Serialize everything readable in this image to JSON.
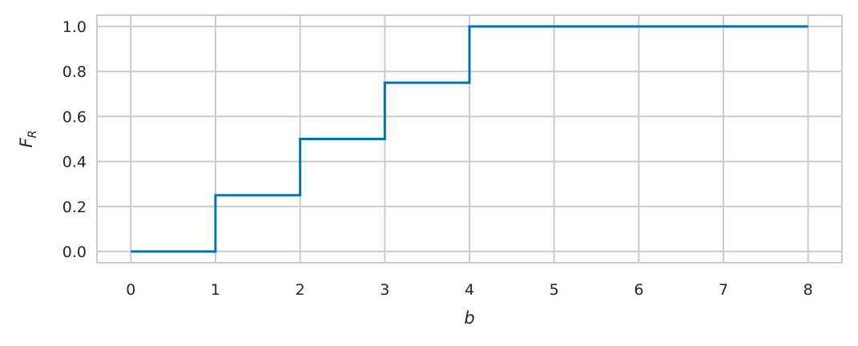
{
  "chart_data": {
    "type": "line",
    "drawstyle": "steps-post",
    "title": "",
    "xlabel": "b",
    "ylabel": {
      "main": "F",
      "sub": "R"
    },
    "xlim": [
      -0.4,
      8.4
    ],
    "ylim": [
      -0.05,
      1.05
    ],
    "xticks": [
      0,
      1,
      2,
      3,
      4,
      5,
      6,
      7,
      8
    ],
    "xtick_labels": [
      "0",
      "1",
      "2",
      "3",
      "4",
      "5",
      "6",
      "7",
      "8"
    ],
    "yticks": [
      0.0,
      0.2,
      0.4,
      0.6,
      0.8,
      1.0
    ],
    "ytick_labels": [
      "0.0",
      "0.2",
      "0.4",
      "0.6",
      "0.8",
      "1.0"
    ],
    "grid": true,
    "series": [
      {
        "x": [
          0,
          1,
          2,
          3,
          4,
          8
        ],
        "y": [
          0.0,
          0.25,
          0.5,
          0.75,
          1.0,
          1.0
        ]
      }
    ],
    "colors": {
      "line": "#0173b2",
      "grid": "#cccccc",
      "frame": "#cccccc"
    }
  }
}
